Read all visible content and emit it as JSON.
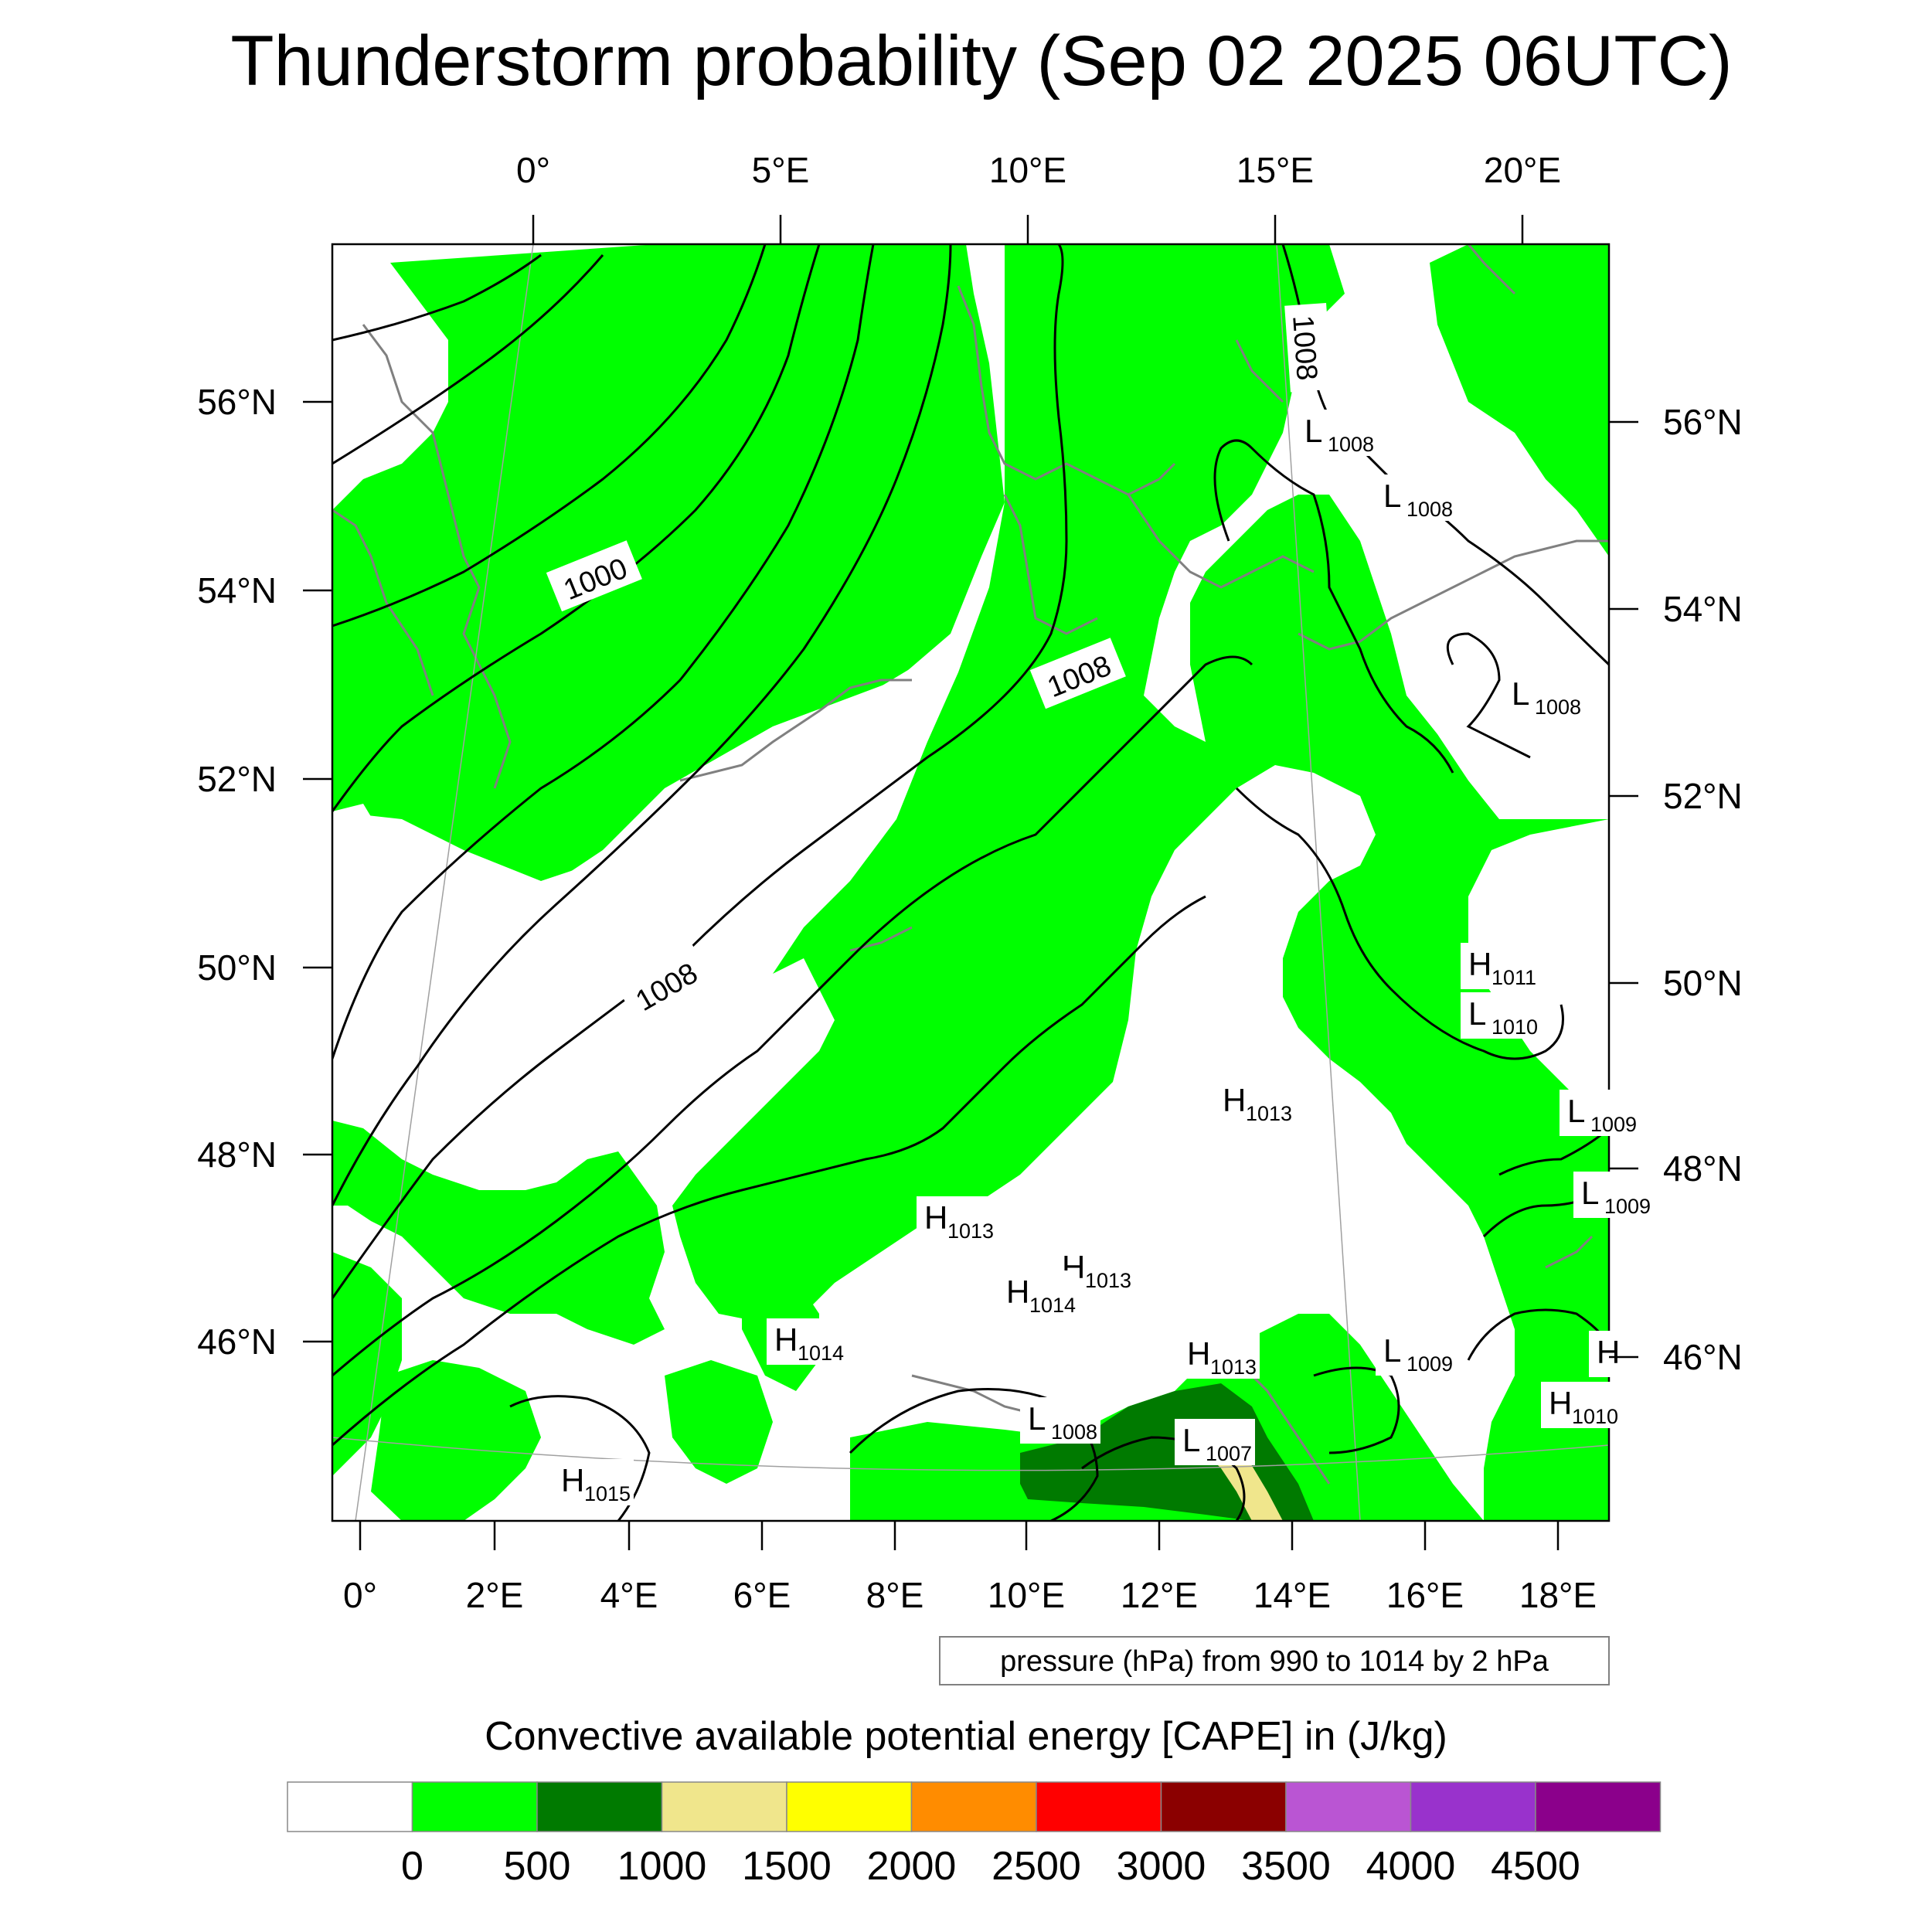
{
  "title": "Thunderstorm probability (Sep 02 2025 06UTC)",
  "top_lon_labels": [
    "0°",
    "5°E",
    "10°E",
    "15°E",
    "20°E"
  ],
  "bottom_lon_labels": [
    "0°",
    "2°E",
    "4°E",
    "6°E",
    "8°E",
    "10°E",
    "12°E",
    "14°E",
    "16°E",
    "18°E"
  ],
  "left_lat_labels": [
    "56°N",
    "54°N",
    "52°N",
    "50°N",
    "48°N",
    "46°N"
  ],
  "right_lat_labels": [
    "56°N",
    "54°N",
    "52°N",
    "50°N",
    "48°N",
    "46°N"
  ],
  "isobar_labels": [
    "1000",
    "1008",
    "1008",
    "1008"
  ],
  "pressure_centers": [
    {
      "type": "L",
      "value": "1008"
    },
    {
      "type": "L",
      "value": "1008"
    },
    {
      "type": "L",
      "value": "1008"
    },
    {
      "type": "H",
      "value": "1011"
    },
    {
      "type": "L",
      "value": "1010"
    },
    {
      "type": "H",
      "value": "1013"
    },
    {
      "type": "L",
      "value": "1009"
    },
    {
      "type": "L",
      "value": "1009"
    },
    {
      "type": "H",
      "value": "1013"
    },
    {
      "type": "H",
      "value": "1013"
    },
    {
      "type": "H",
      "value": "1014"
    },
    {
      "type": "H",
      "value": "1014"
    },
    {
      "type": "H",
      "value": "1013"
    },
    {
      "type": "L",
      "value": "1009"
    },
    {
      "type": "H",
      "value": ""
    },
    {
      "type": "H",
      "value": "1010"
    },
    {
      "type": "L",
      "value": "1008"
    },
    {
      "type": "L",
      "value": "1007"
    },
    {
      "type": "H",
      "value": "1015"
    }
  ],
  "contour_info": "pressure (hPa) from 990 to 1014 by 2 hPa",
  "legend": {
    "title": "Convective available potential energy [CAPE] in (J/kg)",
    "colors": [
      "#ffffff",
      "#00ff00",
      "#007a00",
      "#f0e68c",
      "#ffff00",
      "#ff8c00",
      "#ff0000",
      "#8b0000",
      "#ba55d3",
      "#9932cc",
      "#8b008b"
    ],
    "labels": [
      "0",
      "500",
      "1000",
      "1500",
      "2000",
      "2500",
      "3000",
      "3500",
      "4000",
      "4500"
    ]
  },
  "colors": {
    "cape_0_500": "#00ff00",
    "cape_500_1000": "#007a00",
    "cape_1000_1500": "#f0e68c",
    "coastline": "#808080",
    "isobar": "#000000"
  }
}
